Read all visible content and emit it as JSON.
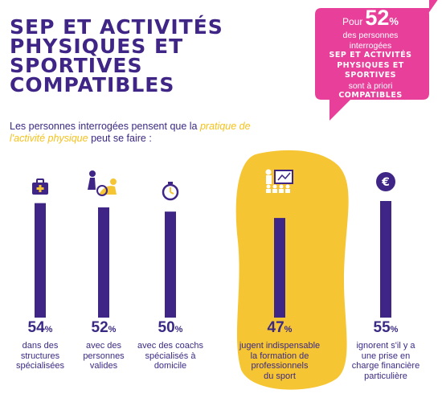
{
  "title_lines": [
    "SEP ET ACTIVITÉS",
    "PHYSIQUES ET",
    "SPORTIVES",
    "COMPATIBLES"
  ],
  "badge": {
    "pre": "Pour",
    "value": "52",
    "unit": "%",
    "line1": "des personnes",
    "line2": "interrogées",
    "bold1": "SEP ET ACTIVITÉS",
    "bold2": "PHYSIQUES ET",
    "bold3": "SPORTIVES",
    "line3": "sont à priori",
    "bold4": "COMPATIBLES",
    "color": "#e8409a"
  },
  "intro": {
    "part1": "Les personnes interrogées pensent que la",
    "highlight": "pratique de l'activité physique",
    "part2": "peut se faire :"
  },
  "colors": {
    "bar": "#3f2586",
    "highlight_blob": "#f6c533",
    "text": "#3b2a84"
  },
  "chart_data": {
    "type": "bar",
    "unit": "%",
    "categories": [
      "dans des structures spécialisées",
      "avec des personnes valides",
      "avec des coachs spécialisés à domicile",
      "jugent indispensable la formation de professionnels du sport",
      "ignorent s'il y a une prise en charge financière particulière"
    ],
    "values": [
      54,
      52,
      50,
      47,
      55
    ],
    "label_lines": [
      [
        "dans des",
        "structures",
        "spécialisées"
      ],
      [
        "avec des",
        "personnes",
        "valides"
      ],
      [
        "avec des coachs",
        "spécialisés à",
        "domicile"
      ],
      [
        "jugent indispensable",
        "la formation de",
        "professionnels",
        "du sport"
      ],
      [
        "ignorent s'il y a",
        "une prise en",
        "charge financière",
        "particulière"
      ]
    ],
    "icons": [
      "medical-kit-icon",
      "assistance-icon",
      "stopwatch-icon",
      "teacher-board-icon",
      "euro-coin-icon"
    ],
    "highlighted_index": 3,
    "ylim": [
      0,
      55
    ]
  }
}
